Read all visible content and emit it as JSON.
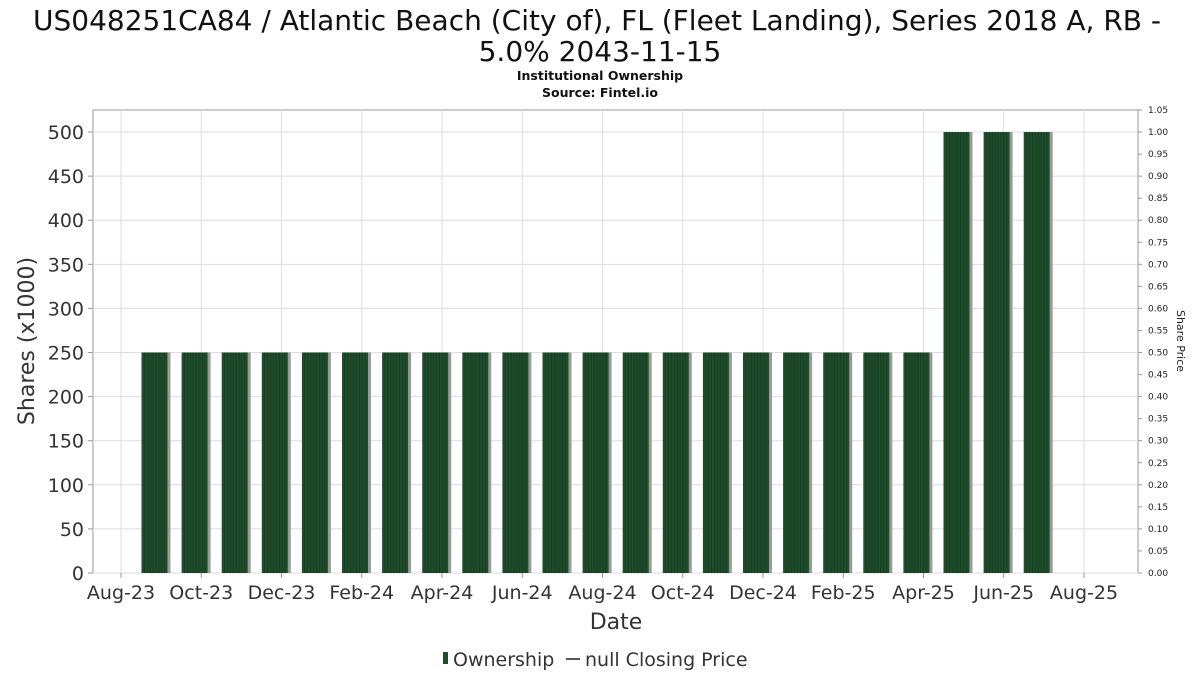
{
  "chart_data": {
    "type": "bar",
    "title_line1": "US048251CA84 / Atlantic Beach (City of), FL (Fleet Landing), Series 2018 A, RB -",
    "title_line2": "5.0% 2043-11-15",
    "subtitle": "Institutional Ownership",
    "source": "Source: Fintel.io",
    "xlabel": "Date",
    "ylabel": "Shares (x1000)",
    "y2label": "Share Price",
    "ylim": [
      0,
      525
    ],
    "y2lim": [
      0,
      1.05
    ],
    "yticks": [
      "0",
      "50",
      "100",
      "150",
      "200",
      "250",
      "300",
      "350",
      "400",
      "450",
      "500"
    ],
    "y2ticks": [
      "0.00",
      "0.05",
      "0.10",
      "0.15",
      "0.20",
      "0.25",
      "0.30",
      "0.35",
      "0.40",
      "0.45",
      "0.50",
      "0.55",
      "0.60",
      "0.65",
      "0.70",
      "0.75",
      "0.80",
      "0.85",
      "0.90",
      "0.95",
      "1.00",
      "1.05"
    ],
    "xticks": [
      "Aug-23",
      "Oct-23",
      "Dec-23",
      "Feb-24",
      "Apr-24",
      "Jun-24",
      "Aug-24",
      "Oct-24",
      "Dec-24",
      "Feb-25",
      "Apr-25",
      "Jun-25",
      "Aug-25"
    ],
    "grid": true,
    "legend_position": "bottom",
    "series": [
      {
        "name": "Ownership",
        "color": "#1f4d2b",
        "values": [
          250,
          250,
          250,
          250,
          250,
          250,
          250,
          250,
          250,
          250,
          250,
          250,
          250,
          250,
          250,
          250,
          250,
          250,
          250,
          250,
          500,
          500,
          500
        ]
      }
    ],
    "legend": [
      {
        "name": "Ownership",
        "color": "#1f4d2b"
      },
      {
        "name": "null Closing Price",
        "color": "#555555"
      }
    ]
  }
}
